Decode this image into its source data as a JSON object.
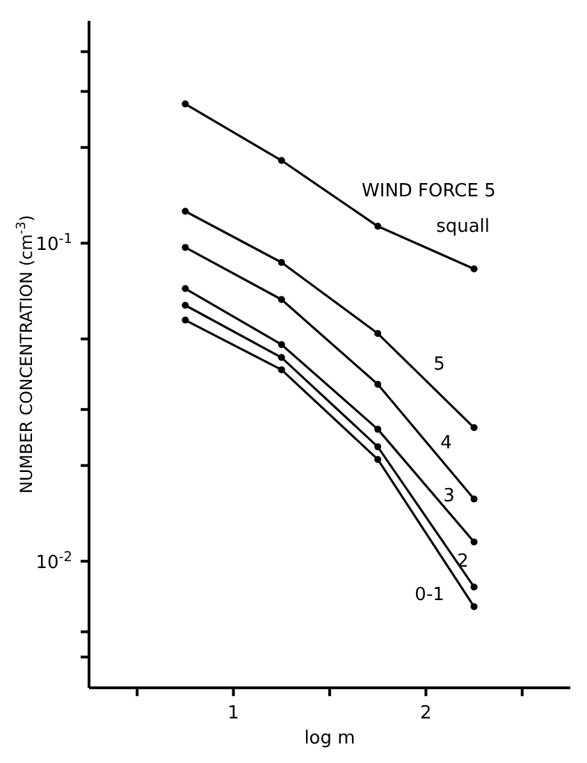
{
  "chart_data": {
    "type": "line",
    "xlabel": "log m",
    "ylabel": "NUMBER CONCENTRATION (cm$^{-3}$)",
    "log": "y",
    "marker": "circle",
    "line_style": "solid",
    "xlim": [
      0.25,
      2.75
    ],
    "xticks": [
      {
        "value": 0.5,
        "label": null
      },
      1,
      {
        "value": 1.5,
        "label": null
      },
      2,
      {
        "value": 2.5,
        "label": null
      }
    ],
    "ylim": [
      0.004,
      0.5
    ],
    "yticks": [
      {
        "value": 0.005,
        "label": null
      },
      {
        "value": 0.006,
        "label": null
      },
      {
        "value": 0.01,
        "label": "10$^{-2}$"
      },
      {
        "value": 0.02,
        "label": null
      },
      {
        "value": 0.03,
        "label": null
      },
      {
        "value": 0.05,
        "label": null
      },
      {
        "value": 0.1,
        "label": "10$^{-1}$"
      },
      {
        "value": 0.2,
        "label": null
      },
      {
        "value": 0.3,
        "label": null
      },
      {
        "value": 0.4,
        "label": null
      }
    ],
    "x": [
      0.75,
      1.25,
      1.75,
      2.25
    ],
    "series": [
      {
        "name": "squall",
        "color": "#000000",
        "values": [
          0.274,
          0.182,
          0.113,
          0.083
        ]
      },
      {
        "name": "5",
        "color": "#000000",
        "values": [
          0.126,
          0.087,
          0.052,
          0.0263
        ]
      },
      {
        "name": "4",
        "color": "#000000",
        "values": [
          0.097,
          0.0665,
          0.036,
          0.0157
        ]
      },
      {
        "name": "3",
        "color": "#000000",
        "values": [
          0.072,
          0.048,
          0.026,
          0.0115
        ]
      },
      {
        "name": "2",
        "color": "#000000",
        "values": [
          0.0638,
          0.0437,
          0.0229,
          0.0083
        ]
      },
      {
        "name": "0-1",
        "color": "#000000",
        "values": [
          0.0573,
          0.04,
          0.0209,
          0.0072
        ]
      }
    ],
    "annotations": [
      "WIND FORCE 5"
    ]
  }
}
